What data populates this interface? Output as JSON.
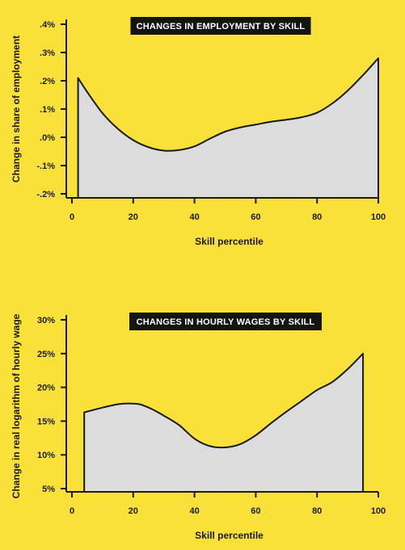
{
  "chart_data": [
    {
      "type": "area",
      "title": "CHANGES IN EMPLOYMENT BY SKILL",
      "xlabel": "Skill percentile",
      "ylabel": "Change in share of employment",
      "xlim": [
        0,
        100
      ],
      "ylim": [
        -0.2,
        0.4
      ],
      "xticks": [
        "0",
        "20",
        "40",
        "60",
        "80",
        "100"
      ],
      "yticks": [
        ".4%",
        ".3%",
        ".2%",
        ".1%",
        ".0%",
        "-.1%",
        "-.2%"
      ],
      "grid": false,
      "fill_color": "#dcdcdc",
      "line_color": "#1a1a1a",
      "series": [
        {
          "x": [
            2,
            5,
            10,
            15,
            20,
            25,
            30,
            35,
            40,
            45,
            50,
            55,
            60,
            65,
            70,
            75,
            80,
            85,
            90,
            95,
            100
          ],
          "values": [
            0.21,
            0.16,
            0.085,
            0.03,
            -0.01,
            -0.035,
            -0.047,
            -0.045,
            -0.032,
            -0.005,
            0.02,
            0.035,
            0.045,
            0.055,
            0.062,
            0.071,
            0.087,
            0.12,
            0.165,
            0.22,
            0.28
          ]
        }
      ]
    },
    {
      "type": "area",
      "title": "CHANGES IN HOURLY WAGES BY SKILL",
      "xlabel": "Skill percentile",
      "ylabel": "Change in real logarithm of hourly wage",
      "xlim": [
        0,
        100
      ],
      "ylim": [
        5,
        30
      ],
      "xticks": [
        "0",
        "20",
        "40",
        "60",
        "80",
        "100"
      ],
      "yticks": [
        "30%",
        "25%",
        "20%",
        "15%",
        "10%",
        "5%"
      ],
      "grid": false,
      "fill_color": "#dcdcdc",
      "line_color": "#1a1a1a",
      "series": [
        {
          "x": [
            4,
            10,
            15,
            18,
            22,
            26,
            30,
            35,
            40,
            45,
            50,
            55,
            60,
            65,
            70,
            75,
            80,
            85,
            90,
            95
          ],
          "values": [
            16.3,
            17.0,
            17.5,
            17.6,
            17.5,
            16.8,
            15.8,
            14.4,
            12.4,
            11.3,
            11.1,
            11.6,
            12.9,
            14.7,
            16.4,
            18.0,
            19.6,
            20.8,
            22.7,
            25.0
          ]
        }
      ]
    }
  ]
}
